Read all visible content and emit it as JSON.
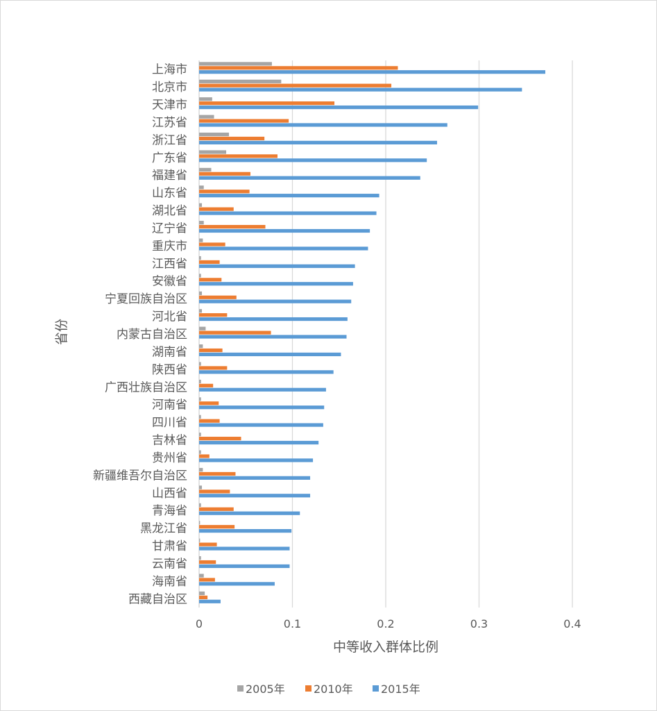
{
  "chart_data": {
    "type": "bar",
    "orientation": "horizontal",
    "title": "",
    "xlabel": "中等收入群体比例",
    "ylabel": "省份",
    "xlim": [
      0,
      0.4
    ],
    "xticks": [
      "0",
      "0.1",
      "0.2",
      "0.3",
      "0.4"
    ],
    "grid": true,
    "legend": "bottom",
    "categories": [
      "上海市",
      "北京市",
      "天津市",
      "江苏省",
      "浙江省",
      "广东省",
      "福建省",
      "山东省",
      "湖北省",
      "辽宁省",
      "重庆市",
      "江西省",
      "安徽省",
      "宁夏回族自治区",
      "河北省",
      "内蒙古自治区",
      "湖南省",
      "陕西省",
      "广西壮族自治区",
      "河南省",
      "四川省",
      "吉林省",
      "贵州省",
      "新疆维吾尔自治区",
      "山西省",
      "青海省",
      "黑龙江省",
      "甘肃省",
      "云南省",
      "海南省",
      "西藏自治区"
    ],
    "series": [
      {
        "name": "2005年",
        "color": "#a5a5a5",
        "values": [
          0.078,
          0.088,
          0.014,
          0.016,
          0.032,
          0.029,
          0.013,
          0.005,
          0.003,
          0.005,
          0.004,
          0.002,
          0.002,
          0.003,
          0.003,
          0.007,
          0.004,
          0.002,
          0.002,
          0.002,
          0.002,
          0.002,
          0.002,
          0.004,
          0.003,
          0.002,
          0.001,
          0.001,
          0.002,
          0.005,
          0.006
        ]
      },
      {
        "name": "2010年",
        "color": "#ed7d31",
        "values": [
          0.213,
          0.206,
          0.145,
          0.096,
          0.07,
          0.084,
          0.055,
          0.054,
          0.037,
          0.071,
          0.028,
          0.022,
          0.024,
          0.04,
          0.03,
          0.077,
          0.025,
          0.03,
          0.015,
          0.021,
          0.022,
          0.045,
          0.011,
          0.039,
          0.033,
          0.037,
          0.038,
          0.019,
          0.018,
          0.017,
          0.009
        ]
      },
      {
        "name": "2015年",
        "color": "#5b9bd5",
        "values": [
          0.371,
          0.346,
          0.299,
          0.266,
          0.255,
          0.244,
          0.237,
          0.193,
          0.19,
          0.183,
          0.181,
          0.167,
          0.165,
          0.163,
          0.159,
          0.158,
          0.152,
          0.144,
          0.136,
          0.134,
          0.133,
          0.128,
          0.122,
          0.119,
          0.119,
          0.108,
          0.099,
          0.097,
          0.097,
          0.081,
          0.023
        ]
      }
    ]
  }
}
